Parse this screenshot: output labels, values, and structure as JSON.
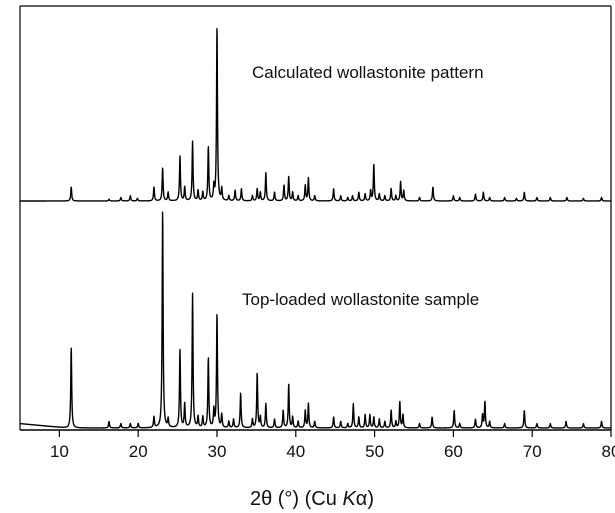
{
  "chart_data": {
    "type": "line",
    "xlabel": "2θ (°) (Cu Kα)",
    "xlabel_main": "2θ (°) (Cu ",
    "xlabel_italic": "K",
    "xlabel_end": "α)",
    "xlim": [
      5,
      80
    ],
    "xticks": [
      10,
      20,
      30,
      40,
      50,
      60,
      70,
      80
    ],
    "grid": false,
    "y_axis_shown": false,
    "series": [
      {
        "name": "Calculated wollastonite pattern",
        "color": "#000000",
        "baseline": 0.035,
        "peaks": [
          [
            11.5,
            0.08
          ],
          [
            16.3,
            0.01
          ],
          [
            17.8,
            0.02
          ],
          [
            19.0,
            0.03
          ],
          [
            19.9,
            0.015
          ],
          [
            22.0,
            0.08
          ],
          [
            23.1,
            0.19
          ],
          [
            23.8,
            0.05
          ],
          [
            25.3,
            0.26
          ],
          [
            25.9,
            0.08
          ],
          [
            26.9,
            0.34
          ],
          [
            27.6,
            0.06
          ],
          [
            28.2,
            0.05
          ],
          [
            28.9,
            0.31
          ],
          [
            29.6,
            0.08
          ],
          [
            30.0,
            1.0
          ],
          [
            30.6,
            0.07
          ],
          [
            31.5,
            0.03
          ],
          [
            32.3,
            0.06
          ],
          [
            33.1,
            0.07
          ],
          [
            34.5,
            0.03
          ],
          [
            35.1,
            0.07
          ],
          [
            35.5,
            0.05
          ],
          [
            36.2,
            0.16
          ],
          [
            37.3,
            0.05
          ],
          [
            38.5,
            0.09
          ],
          [
            39.1,
            0.14
          ],
          [
            39.6,
            0.05
          ],
          [
            40.3,
            0.03
          ],
          [
            41.2,
            0.09
          ],
          [
            41.6,
            0.13
          ],
          [
            42.4,
            0.03
          ],
          [
            44.8,
            0.07
          ],
          [
            45.7,
            0.03
          ],
          [
            46.6,
            0.02
          ],
          [
            47.2,
            0.03
          ],
          [
            48.0,
            0.05
          ],
          [
            48.8,
            0.04
          ],
          [
            49.5,
            0.06
          ],
          [
            49.9,
            0.21
          ],
          [
            50.6,
            0.04
          ],
          [
            51.3,
            0.03
          ],
          [
            52.1,
            0.07
          ],
          [
            52.7,
            0.03
          ],
          [
            53.3,
            0.11
          ],
          [
            53.7,
            0.06
          ],
          [
            55.7,
            0.02
          ],
          [
            57.4,
            0.08
          ],
          [
            60.0,
            0.03
          ],
          [
            60.8,
            0.02
          ],
          [
            62.8,
            0.04
          ],
          [
            63.8,
            0.05
          ],
          [
            64.6,
            0.02
          ],
          [
            66.5,
            0.02
          ],
          [
            68.0,
            0.015
          ],
          [
            69.0,
            0.05
          ],
          [
            70.6,
            0.02
          ],
          [
            72.3,
            0.02
          ],
          [
            74.4,
            0.02
          ],
          [
            76.5,
            0.015
          ],
          [
            78.8,
            0.02
          ]
        ]
      },
      {
        "name": "Top-loaded wollastonite sample",
        "color": "#000000",
        "baseline": 0.035,
        "peaks": [
          [
            11.5,
            0.37
          ],
          [
            16.3,
            0.03
          ],
          [
            17.8,
            0.02
          ],
          [
            19.0,
            0.02
          ],
          [
            20.0,
            0.02
          ],
          [
            22.0,
            0.05
          ],
          [
            23.1,
            1.0
          ],
          [
            23.8,
            0.04
          ],
          [
            25.3,
            0.36
          ],
          [
            25.9,
            0.11
          ],
          [
            26.9,
            0.61
          ],
          [
            27.6,
            0.05
          ],
          [
            28.2,
            0.05
          ],
          [
            28.9,
            0.32
          ],
          [
            29.6,
            0.08
          ],
          [
            30.0,
            0.52
          ],
          [
            30.6,
            0.06
          ],
          [
            31.5,
            0.03
          ],
          [
            32.1,
            0.04
          ],
          [
            33.0,
            0.16
          ],
          [
            34.5,
            0.04
          ],
          [
            35.1,
            0.25
          ],
          [
            35.5,
            0.05
          ],
          [
            36.2,
            0.11
          ],
          [
            37.3,
            0.04
          ],
          [
            38.4,
            0.08
          ],
          [
            39.1,
            0.2
          ],
          [
            39.6,
            0.05
          ],
          [
            40.3,
            0.03
          ],
          [
            41.2,
            0.08
          ],
          [
            41.6,
            0.11
          ],
          [
            42.4,
            0.03
          ],
          [
            44.8,
            0.05
          ],
          [
            45.7,
            0.03
          ],
          [
            46.6,
            0.02
          ],
          [
            47.3,
            0.11
          ],
          [
            48.0,
            0.05
          ],
          [
            48.8,
            0.06
          ],
          [
            49.4,
            0.06
          ],
          [
            49.9,
            0.05
          ],
          [
            50.6,
            0.04
          ],
          [
            51.3,
            0.03
          ],
          [
            52.1,
            0.08
          ],
          [
            52.7,
            0.03
          ],
          [
            53.2,
            0.12
          ],
          [
            53.6,
            0.06
          ],
          [
            55.7,
            0.02
          ],
          [
            57.3,
            0.05
          ],
          [
            60.1,
            0.08
          ],
          [
            60.8,
            0.02
          ],
          [
            62.8,
            0.04
          ],
          [
            63.7,
            0.06
          ],
          [
            64.0,
            0.12
          ],
          [
            64.6,
            0.03
          ],
          [
            66.5,
            0.02
          ],
          [
            69.0,
            0.08
          ],
          [
            70.6,
            0.02
          ],
          [
            72.3,
            0.02
          ],
          [
            74.3,
            0.03
          ],
          [
            76.5,
            0.02
          ],
          [
            78.8,
            0.03
          ]
        ]
      }
    ]
  }
}
